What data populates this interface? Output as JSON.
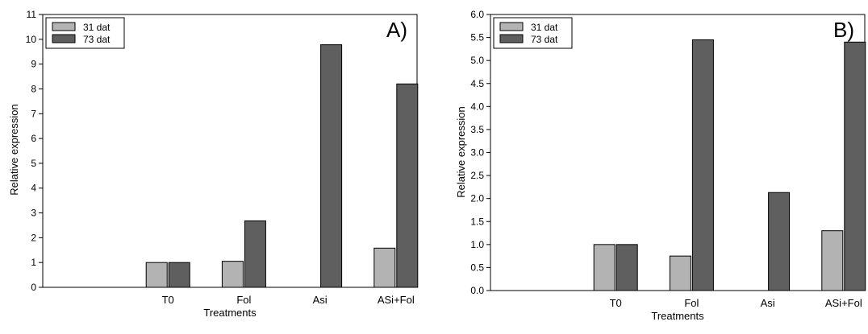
{
  "chart_data": [
    {
      "type": "bar",
      "panel_label": "A)",
      "xlabel": "Treatments",
      "ylabel": "Relative expression",
      "categories": [
        "T0",
        "Fol",
        "Asi",
        "ASi+Fol"
      ],
      "series": [
        {
          "name": "31 dat",
          "values": [
            1.0,
            1.05,
            null,
            1.58
          ],
          "color": "#b3b3b3"
        },
        {
          "name": "73 dat",
          "values": [
            1.0,
            2.68,
            9.78,
            8.2
          ],
          "color": "#5f5f5f"
        }
      ],
      "ylim": [
        0,
        11
      ],
      "yticks": [
        "0",
        "1",
        "2",
        "3",
        "4",
        "5",
        "6",
        "7",
        "8",
        "9",
        "10",
        "11"
      ],
      "legend": "top-left",
      "grid": false
    },
    {
      "type": "bar",
      "panel_label": "B)",
      "xlabel": "Treatments",
      "ylabel": "Relative expression",
      "categories": [
        "T0",
        "Fol",
        "Asi",
        "ASi+Fol"
      ],
      "series": [
        {
          "name": "31 dat",
          "values": [
            1.0,
            0.75,
            null,
            1.3
          ],
          "color": "#b3b3b3"
        },
        {
          "name": "73 dat",
          "values": [
            1.0,
            5.45,
            2.13,
            5.4
          ],
          "color": "#5f5f5f"
        }
      ],
      "ylim": [
        0,
        6
      ],
      "yticks": [
        "0.0",
        "0.5",
        "1.0",
        "1.5",
        "2.0",
        "2.5",
        "3.0",
        "3.5",
        "4.0",
        "4.5",
        "5.0",
        "5.5",
        "6.0"
      ],
      "legend": "top-left",
      "grid": false
    }
  ]
}
